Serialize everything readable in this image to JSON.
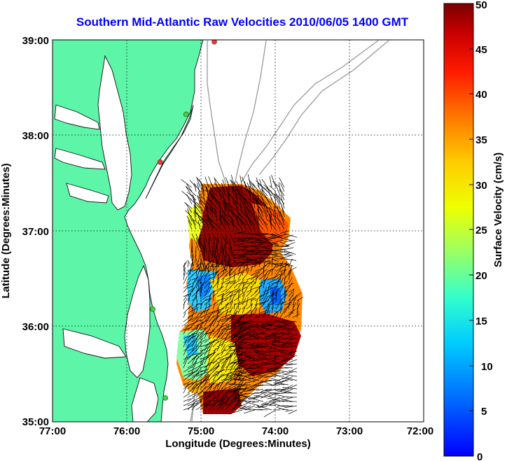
{
  "title": "Southern Mid-Atlantic Raw Velocities 2010/06/05 1400 GMT",
  "map": {
    "xlabel": "Longitude (Degrees:Minutes)",
    "ylabel": "Latitude (Degrees:Minutes)",
    "lon_ticks": [
      "77:00",
      "76:00",
      "75:00",
      "74:00",
      "73:00",
      "72:00"
    ],
    "lat_ticks": [
      "39:00",
      "38:00",
      "37:00",
      "36:00",
      "35:00"
    ],
    "lon_range": [
      -77,
      -72
    ],
    "lat_range": [
      35,
      39
    ],
    "land_color": "#5df5a8",
    "grid": "dotted"
  },
  "colorbar": {
    "label": "Surface Velocity (cm/s)",
    "ticks": [
      "50",
      "45",
      "40",
      "35",
      "30",
      "25",
      "20",
      "15",
      "10",
      "5",
      "0"
    ],
    "range": [
      0,
      50
    ],
    "colormap": "jet"
  },
  "stations": [
    {
      "color": "#ff3030",
      "lon": -74.82,
      "lat": 38.98
    },
    {
      "color": "#33dd33",
      "lon": -75.2,
      "lat": 38.22
    },
    {
      "color": "#ff3030",
      "lon": -75.55,
      "lat": 37.72
    },
    {
      "color": "#33dd33",
      "lon": -75.65,
      "lat": 36.18
    },
    {
      "color": "#33dd33",
      "lon": -75.48,
      "lat": 35.25
    }
  ]
}
